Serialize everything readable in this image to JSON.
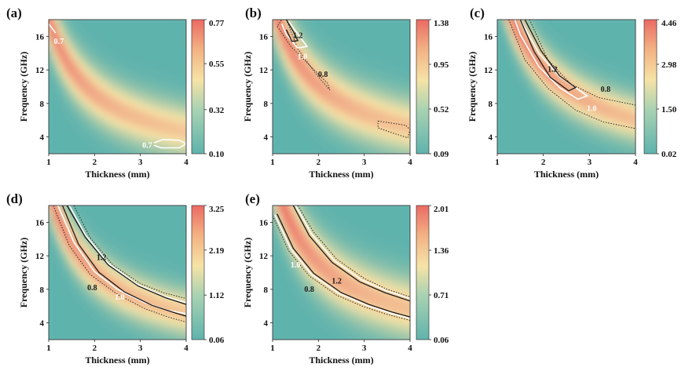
{
  "colors": {
    "low": "#5fb3ad",
    "mid": "#f6e3a6",
    "high": "#ea6a64",
    "contour_dark": "#1a1a1a",
    "contour_light": "#ffffff"
  },
  "chart_data": [
    {
      "label": "(a)",
      "type": "heatmap",
      "xlabel": "Thickness (mm)",
      "ylabel": "Frequency (GHz)",
      "xlim": [
        1,
        4
      ],
      "ylim": [
        2,
        18
      ],
      "x_ticks": [
        "1",
        "2",
        "3",
        "4"
      ],
      "y_ticks": [
        "4",
        "8",
        "12",
        "16"
      ],
      "colorbar": {
        "range": [
          0.1,
          0.77
        ],
        "ticks": [
          "0.77",
          "0.55",
          "0.32",
          "0.10"
        ]
      },
      "ridge_k": 18,
      "band_width": 3.0,
      "contours": [
        {
          "value": "0.7",
          "style": "light",
          "x": [
            1.0,
            1.15
          ],
          "y": [
            17.5,
            16.4
          ]
        },
        {
          "value": "0.7",
          "style": "light",
          "x": [
            3.3,
            3.5,
            3.85,
            4.0,
            3.85,
            3.45,
            3.3
          ],
          "y": [
            3.3,
            3.7,
            3.6,
            3.2,
            2.7,
            2.7,
            3.0
          ]
        }
      ],
      "contour_labels": [
        {
          "text": "0.7",
          "style": "light",
          "x": 1.22,
          "y": 15.3
        },
        {
          "text": "0.7",
          "style": "light",
          "x": 3.15,
          "y": 2.9
        }
      ]
    },
    {
      "label": "(b)",
      "type": "heatmap",
      "xlabel": "Thickness (mm)",
      "ylabel": "Frequency (GHz)",
      "xlim": [
        1,
        4
      ],
      "ylim": [
        2,
        18
      ],
      "x_ticks": [
        "1",
        "2",
        "3",
        "4"
      ],
      "y_ticks": [
        "4",
        "8",
        "12",
        "16"
      ],
      "colorbar": {
        "range": [
          0.09,
          1.38
        ],
        "ticks": [
          "1.38",
          "0.95",
          "0.52",
          "0.09"
        ]
      },
      "ridge_k": 20,
      "band_width": 3.2,
      "contours": [
        {
          "value": "0.8",
          "style": "dotted",
          "x": [
            1.3,
            1.55,
            1.95,
            2.25,
            2.2,
            1.85,
            1.4,
            1.1,
            1.2,
            1.3
          ],
          "y": [
            18,
            14.5,
            11.5,
            9.6,
            10.4,
            12.3,
            14.8,
            17.2,
            18,
            18
          ]
        },
        {
          "value": "0.8",
          "style": "dotted",
          "x": [
            3.3,
            3.9,
            4.0,
            3.95,
            3.55,
            3.3,
            3.3
          ],
          "y": [
            5.9,
            5.4,
            4.9,
            3.9,
            4.6,
            5.1,
            5.9
          ]
        },
        {
          "value": "1.0",
          "style": "light",
          "x": [
            1.35,
            1.6,
            1.75,
            1.55,
            1.3,
            1.2
          ],
          "y": [
            17.8,
            15.9,
            14.8,
            14.6,
            16.2,
            17.5
          ]
        },
        {
          "value": "1.2",
          "style": "dark",
          "x": [
            1.3,
            1.45,
            1.55,
            1.42,
            1.3
          ],
          "y": [
            18,
            16.6,
            15.5,
            15.4,
            16.8
          ]
        }
      ],
      "contour_labels": [
        {
          "text": "1.2",
          "style": "dark",
          "x": 1.55,
          "y": 16.0
        },
        {
          "text": "1.0",
          "style": "light",
          "x": 1.65,
          "y": 13.5
        },
        {
          "text": "0.8",
          "style": "dark",
          "x": 2.1,
          "y": 11.4
        }
      ]
    },
    {
      "label": "(c)",
      "type": "heatmap",
      "xlabel": "Thickness (mm)",
      "ylabel": "Frequency (GHz)",
      "xlim": [
        1,
        4
      ],
      "ylim": [
        2,
        18
      ],
      "x_ticks": [
        "1",
        "2",
        "3",
        "4"
      ],
      "y_ticks": [
        "4",
        "8",
        "12",
        "16"
      ],
      "colorbar": {
        "range": [
          0.02,
          4.46
        ],
        "ticks": [
          "4.46",
          "2.98",
          "1.50",
          "0.02"
        ]
      },
      "ridge_k": 24,
      "band_width": 2.6,
      "contours": [
        {
          "value": "0.8",
          "style": "dotted",
          "x": [
            1.7,
            2.1,
            2.6,
            3.2,
            4.0
          ],
          "y": [
            18,
            13.2,
            10.3,
            8.7,
            7.8
          ]
        },
        {
          "value": "0.8",
          "style": "dotted",
          "x": [
            1.25,
            1.6,
            2.1,
            2.7,
            3.3,
            4.0
          ],
          "y": [
            18,
            13.2,
            9.8,
            7.2,
            5.8,
            5.0
          ]
        },
        {
          "value": "1.0",
          "style": "light",
          "x": [
            1.5,
            1.9,
            2.35,
            2.75,
            2.95,
            2.75,
            2.35,
            1.9,
            1.5,
            1.38
          ],
          "y": [
            18,
            14,
            11.2,
            9.7,
            8.9,
            8.5,
            9.9,
            12.4,
            16.2,
            18
          ]
        },
        {
          "value": "1.2",
          "style": "dark",
          "x": [
            1.6,
            1.95,
            2.35,
            2.7,
            2.55,
            2.15,
            1.8,
            1.5
          ],
          "y": [
            18,
            14.3,
            11.3,
            9.9,
            9.5,
            11.1,
            14.2,
            18
          ]
        }
      ],
      "contour_labels": [
        {
          "text": "1.2",
          "style": "dark",
          "x": 2.2,
          "y": 12.0
        },
        {
          "text": "0.8",
          "style": "dark",
          "x": 3.35,
          "y": 9.6
        },
        {
          "text": "1.0",
          "style": "light",
          "x": 3.05,
          "y": 7.3
        }
      ]
    },
    {
      "label": "(d)",
      "type": "heatmap",
      "xlabel": "Thickness (mm)",
      "ylabel": "Frequency (GHz)",
      "xlim": [
        1,
        4
      ],
      "ylim": [
        2,
        18
      ],
      "x_ticks": [
        "1",
        "2",
        "3",
        "4"
      ],
      "y_ticks": [
        "4",
        "8",
        "12",
        "16"
      ],
      "colorbar": {
        "range": [
          0.06,
          3.25
        ],
        "ticks": [
          "3.25",
          "2.19",
          "1.12",
          "0.06"
        ]
      },
      "ridge_k": 20,
      "band_width": 2.6,
      "contours": [
        {
          "value": "0.8",
          "style": "dotted",
          "x": [
            1.55,
            1.9,
            2.4,
            3.0,
            3.5,
            4.0
          ],
          "y": [
            18,
            14.2,
            10.9,
            8.7,
            7.6,
            6.9
          ]
        },
        {
          "value": "0.8",
          "style": "dotted",
          "x": [
            1.1,
            1.45,
            1.9,
            2.5,
            3.1,
            3.6,
            4.0
          ],
          "y": [
            18,
            13.2,
            9.8,
            7.4,
            5.7,
            4.7,
            4.1
          ]
        },
        {
          "value": "1.0",
          "style": "light",
          "x": [
            1.45,
            1.8,
            2.3,
            2.9,
            3.5,
            4.0
          ],
          "y": [
            18,
            14.5,
            11.1,
            8.7,
            7.2,
            6.4
          ]
        },
        {
          "value": "1.0",
          "style": "light",
          "x": [
            1.2,
            1.55,
            2.0,
            2.5,
            3.1,
            3.6,
            4.0
          ],
          "y": [
            18,
            13.6,
            10.1,
            8.0,
            6.4,
            5.5,
            5.1
          ]
        },
        {
          "value": "1.2",
          "style": "dark",
          "x": [
            1.4,
            1.8,
            2.3,
            2.95,
            3.55,
            4.0
          ],
          "y": [
            18,
            14.2,
            10.9,
            8.4,
            7.0,
            6.2
          ]
        },
        {
          "value": "1.2",
          "style": "dark",
          "x": [
            1.3,
            1.65,
            2.1,
            2.65,
            3.25,
            3.75,
            4.0
          ],
          "y": [
            18,
            13.4,
            10.0,
            7.7,
            6.1,
            5.2,
            4.8
          ]
        }
      ],
      "contour_labels": [
        {
          "text": "1.2",
          "style": "dark",
          "x": 2.15,
          "y": 11.7
        },
        {
          "text": "0.8",
          "style": "dark",
          "x": 1.95,
          "y": 8.1
        },
        {
          "text": "1.0",
          "style": "light",
          "x": 2.55,
          "y": 7.0
        }
      ]
    },
    {
      "label": "(e)",
      "type": "heatmap",
      "xlabel": "Thickness (mm)",
      "ylabel": "Frequency (GHz)",
      "xlim": [
        1,
        4
      ],
      "ylim": [
        2,
        18
      ],
      "x_ticks": [
        "1",
        "2",
        "3",
        "4"
      ],
      "y_ticks": [
        "4",
        "8",
        "12",
        "16"
      ],
      "colorbar": {
        "range": [
          0.06,
          2.01
        ],
        "ticks": [
          "2.01",
          "1.36",
          "0.71",
          "0.06"
        ]
      },
      "ridge_k": 22,
      "band_width": 3.4,
      "contours": [
        {
          "value": "0.8",
          "style": "dotted",
          "x": [
            1.55,
            1.9,
            2.4,
            3.0,
            3.5,
            4.0
          ],
          "y": [
            18,
            14.8,
            11.6,
            9.3,
            8.0,
            7.1
          ]
        },
        {
          "value": "0.8",
          "style": "dotted",
          "x": [
            1.0,
            1.35,
            1.8,
            2.4,
            3.0,
            3.5,
            4.0
          ],
          "y": [
            16.8,
            12.6,
            9.6,
            7.3,
            5.9,
            5.0,
            4.3
          ]
        },
        {
          "value": "1.0",
          "style": "light",
          "x": [
            1.5,
            1.85,
            2.35,
            2.95,
            3.5,
            4.0
          ],
          "y": [
            18,
            14.6,
            11.4,
            9.1,
            7.8,
            6.9
          ]
        },
        {
          "value": "1.0",
          "style": "light",
          "x": [
            1.05,
            1.4,
            1.85,
            2.45,
            3.05,
            3.55,
            4.0
          ],
          "y": [
            16.9,
            12.8,
            9.8,
            7.5,
            6.1,
            5.2,
            4.5
          ]
        },
        {
          "value": "1.2",
          "style": "dark",
          "x": [
            1.45,
            1.8,
            2.3,
            2.9,
            3.45,
            4.0
          ],
          "y": [
            18,
            14.4,
            11.2,
            8.9,
            7.6,
            6.6
          ]
        },
        {
          "value": "1.2",
          "style": "dark",
          "x": [
            1.1,
            1.45,
            1.9,
            2.5,
            3.1,
            3.6,
            4.0
          ],
          "y": [
            17.0,
            12.9,
            9.9,
            7.6,
            6.2,
            5.3,
            4.7
          ]
        }
      ],
      "contour_labels": [
        {
          "text": "1.0",
          "style": "light",
          "x": 1.5,
          "y": 10.8
        },
        {
          "text": "0.8",
          "style": "dark",
          "x": 1.8,
          "y": 7.9
        },
        {
          "text": "1.2",
          "style": "dark",
          "x": 2.4,
          "y": 8.9
        }
      ]
    }
  ]
}
